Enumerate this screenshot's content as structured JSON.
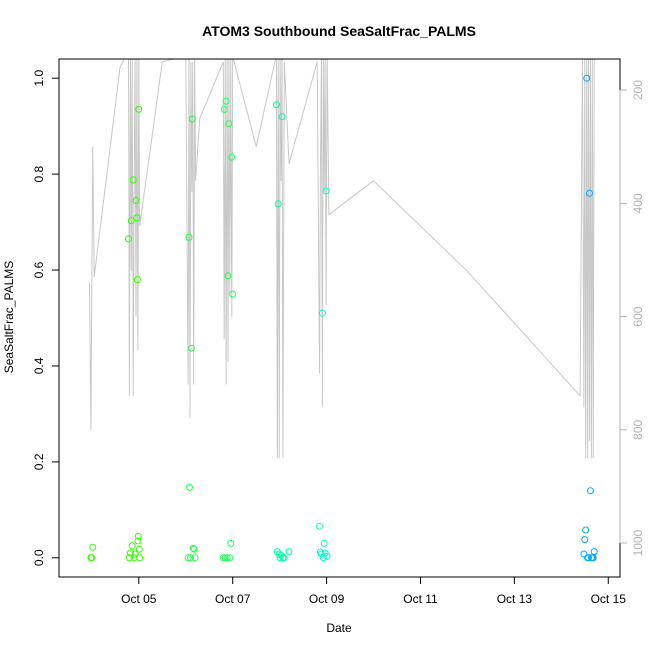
{
  "chart_data": {
    "type": "scatter",
    "title": "ATOM3 Southbound SeaSaltFrac_PALMS",
    "xlabel": "Date",
    "ylabel": "SeaSaltFrac_PALMS",
    "x_unit": "days after 2016-10-04",
    "xlim": [
      -0.7,
      11.25
    ],
    "ylim": [
      -0.04,
      1.04
    ],
    "x_ticks": [
      {
        "value": 1,
        "label": "Oct 05"
      },
      {
        "value": 3,
        "label": "Oct 07"
      },
      {
        "value": 5,
        "label": "Oct 09"
      },
      {
        "value": 7,
        "label": "Oct 11"
      },
      {
        "value": 9,
        "label": "Oct 13"
      },
      {
        "value": 11,
        "label": "Oct 15"
      }
    ],
    "y_ticks": [
      {
        "value": 0.0,
        "label": "0.0"
      },
      {
        "value": 0.2,
        "label": "0.2"
      },
      {
        "value": 0.4,
        "label": "0.4"
      },
      {
        "value": 0.6,
        "label": "0.6"
      },
      {
        "value": 0.8,
        "label": "0.8"
      },
      {
        "value": 1.0,
        "label": "1.0"
      }
    ],
    "secondary_axis": {
      "side": "right",
      "color": "#b3b3b3",
      "reversed": true,
      "range": [
        1060,
        145
      ],
      "ticks": [
        {
          "value": 200,
          "label": "200"
        },
        {
          "value": 400,
          "label": "400"
        },
        {
          "value": 600,
          "label": "600"
        },
        {
          "value": 800,
          "label": "800"
        },
        {
          "value": 1000,
          "label": "1000"
        }
      ]
    },
    "points": [
      {
        "x": -0.02,
        "y": 0.0,
        "color": "#33ff00"
      },
      {
        "x": 0.0,
        "y": 0.0,
        "color": "#33ff00"
      },
      {
        "x": 0.02,
        "y": 0.022,
        "color": "#33ff00"
      },
      {
        "x": 0.78,
        "y": 0.665,
        "color": "#33ff00"
      },
      {
        "x": 0.8,
        "y": 0.0,
        "color": "#33ff00"
      },
      {
        "x": 0.82,
        "y": 0.01,
        "color": "#33ff00"
      },
      {
        "x": 0.84,
        "y": 0.703,
        "color": "#33ff00"
      },
      {
        "x": 0.86,
        "y": 0.025,
        "color": "#33ff00"
      },
      {
        "x": 0.88,
        "y": 0.788,
        "color": "#33ff00"
      },
      {
        "x": 0.9,
        "y": 0.0,
        "color": "#33ff00"
      },
      {
        "x": 0.92,
        "y": 0.008,
        "color": "#33ff00"
      },
      {
        "x": 0.94,
        "y": 0.745,
        "color": "#33ff00"
      },
      {
        "x": 0.96,
        "y": 0.709,
        "color": "#33ff00"
      },
      {
        "x": 0.97,
        "y": 0.58,
        "color": "#33ff00"
      },
      {
        "x": 0.98,
        "y": 0.035,
        "color": "#33ff00"
      },
      {
        "x": 0.99,
        "y": 0.045,
        "color": "#33ff00"
      },
      {
        "x": 1.0,
        "y": 0.935,
        "color": "#33ff00"
      },
      {
        "x": 1.01,
        "y": 0.018,
        "color": "#33ff00"
      },
      {
        "x": 1.02,
        "y": 0.0,
        "color": "#33ff00"
      },
      {
        "x": 2.05,
        "y": 0.0,
        "color": "#22ff44"
      },
      {
        "x": 2.07,
        "y": 0.668,
        "color": "#22ff44"
      },
      {
        "x": 2.08,
        "y": 0.147,
        "color": "#22ff44"
      },
      {
        "x": 2.1,
        "y": 0.0,
        "color": "#22ff44"
      },
      {
        "x": 2.12,
        "y": 0.437,
        "color": "#22ff44"
      },
      {
        "x": 2.14,
        "y": 0.915,
        "color": "#22ff44"
      },
      {
        "x": 2.16,
        "y": 0.02,
        "color": "#22ff44"
      },
      {
        "x": 2.18,
        "y": 0.018,
        "color": "#22ff44"
      },
      {
        "x": 2.2,
        "y": 0.0,
        "color": "#22ff44"
      },
      {
        "x": 2.8,
        "y": 0.0,
        "color": "#22ff55"
      },
      {
        "x": 2.82,
        "y": 0.935,
        "color": "#22ff55"
      },
      {
        "x": 2.84,
        "y": 0.0,
        "color": "#22ff55"
      },
      {
        "x": 2.86,
        "y": 0.952,
        "color": "#22ff55"
      },
      {
        "x": 2.88,
        "y": 0.0,
        "color": "#22ff55"
      },
      {
        "x": 2.9,
        "y": 0.588,
        "color": "#22ff55"
      },
      {
        "x": 2.92,
        "y": 0.905,
        "color": "#22ff55"
      },
      {
        "x": 2.94,
        "y": 0.0,
        "color": "#22ff55"
      },
      {
        "x": 2.96,
        "y": 0.03,
        "color": "#22ff55"
      },
      {
        "x": 2.98,
        "y": 0.835,
        "color": "#22ff55"
      },
      {
        "x": 3.0,
        "y": 0.55,
        "color": "#22ff55"
      },
      {
        "x": 3.93,
        "y": 0.945,
        "color": "#00ffaa"
      },
      {
        "x": 3.95,
        "y": 0.013,
        "color": "#00ffaa"
      },
      {
        "x": 3.97,
        "y": 0.738,
        "color": "#00ffaa"
      },
      {
        "x": 3.99,
        "y": 0.008,
        "color": "#00ffaa"
      },
      {
        "x": 4.01,
        "y": 0.0,
        "color": "#00ffaa"
      },
      {
        "x": 4.03,
        "y": 0.005,
        "color": "#00ffaa"
      },
      {
        "x": 4.05,
        "y": 0.92,
        "color": "#00ffaa"
      },
      {
        "x": 4.07,
        "y": 0.0,
        "color": "#00ffaa"
      },
      {
        "x": 4.1,
        "y": 0.0,
        "color": "#00ffaa"
      },
      {
        "x": 4.2,
        "y": 0.013,
        "color": "#00ffaa"
      },
      {
        "x": 4.85,
        "y": 0.066,
        "color": "#00ffcc"
      },
      {
        "x": 4.87,
        "y": 0.012,
        "color": "#00ffcc"
      },
      {
        "x": 4.89,
        "y": 0.008,
        "color": "#00ffcc"
      },
      {
        "x": 4.91,
        "y": 0.51,
        "color": "#00ffcc"
      },
      {
        "x": 4.93,
        "y": 0.0,
        "color": "#00ffcc"
      },
      {
        "x": 4.95,
        "y": 0.03,
        "color": "#00ffcc"
      },
      {
        "x": 4.97,
        "y": 0.01,
        "color": "#00ffcc"
      },
      {
        "x": 4.99,
        "y": 0.765,
        "color": "#00ffcc"
      },
      {
        "x": 5.01,
        "y": 0.003,
        "color": "#00ffcc"
      },
      {
        "x": 10.48,
        "y": 0.008,
        "color": "#00aaff"
      },
      {
        "x": 10.5,
        "y": 0.038,
        "color": "#00aaff"
      },
      {
        "x": 10.52,
        "y": 0.058,
        "color": "#00aaff"
      },
      {
        "x": 10.54,
        "y": 1.0,
        "color": "#00aaff"
      },
      {
        "x": 10.56,
        "y": 0.0,
        "color": "#00aaff"
      },
      {
        "x": 10.58,
        "y": 0.0,
        "color": "#00aaff"
      },
      {
        "x": 10.6,
        "y": 0.76,
        "color": "#00aaff"
      },
      {
        "x": 10.62,
        "y": 0.14,
        "color": "#00aaff"
      },
      {
        "x": 10.64,
        "y": 0.0,
        "color": "#00aaff"
      },
      {
        "x": 10.66,
        "y": 0.0,
        "color": "#00aaff"
      },
      {
        "x": 10.68,
        "y": 0.0,
        "color": "#00aaff"
      },
      {
        "x": 10.7,
        "y": 0.013,
        "color": "#00aaff"
      }
    ],
    "secondary_line": {
      "color": "#c8c8c8",
      "x": [
        -0.05,
        -0.02,
        0.0,
        0.02,
        0.05,
        0.6,
        0.78,
        0.8,
        0.82,
        0.84,
        0.86,
        0.88,
        0.9,
        0.92,
        0.94,
        0.96,
        0.98,
        1.0,
        1.02,
        1.5,
        2.0,
        2.05,
        2.07,
        2.09,
        2.11,
        2.13,
        2.15,
        2.17,
        2.19,
        2.21,
        2.3,
        2.8,
        2.82,
        2.84,
        2.86,
        2.88,
        2.9,
        2.92,
        2.94,
        2.96,
        2.98,
        3.0,
        3.5,
        3.9,
        3.93,
        3.95,
        3.97,
        3.99,
        4.01,
        4.03,
        4.05,
        4.07,
        4.1,
        4.2,
        4.8,
        4.85,
        4.87,
        4.89,
        4.91,
        4.93,
        4.95,
        4.97,
        4.99,
        5.01,
        5.05,
        6.0,
        8.0,
        10.4,
        10.45,
        10.48,
        10.5,
        10.52,
        10.54,
        10.56,
        10.58,
        10.6,
        10.62,
        10.64,
        10.66,
        10.68,
        10.7
      ],
      "y": [
        540,
        800,
        520,
        300,
        530,
        160,
        130,
        740,
        120,
        520,
        130,
        740,
        380,
        140,
        600,
        140,
        660,
        140,
        440,
        150,
        140,
        720,
        130,
        780,
        150,
        380,
        150,
        720,
        140,
        360,
        250,
        150,
        640,
        140,
        720,
        140,
        680,
        140,
        560,
        140,
        600,
        140,
        300,
        150,
        140,
        850,
        130,
        850,
        140,
        360,
        130,
        850,
        150,
        330,
        150,
        700,
        320,
        140,
        760,
        130,
        380,
        140,
        580,
        130,
        420,
        360,
        520,
        740,
        140,
        760,
        140,
        850,
        140,
        850,
        140,
        820,
        140,
        850,
        140,
        850,
        140
      ]
    }
  }
}
